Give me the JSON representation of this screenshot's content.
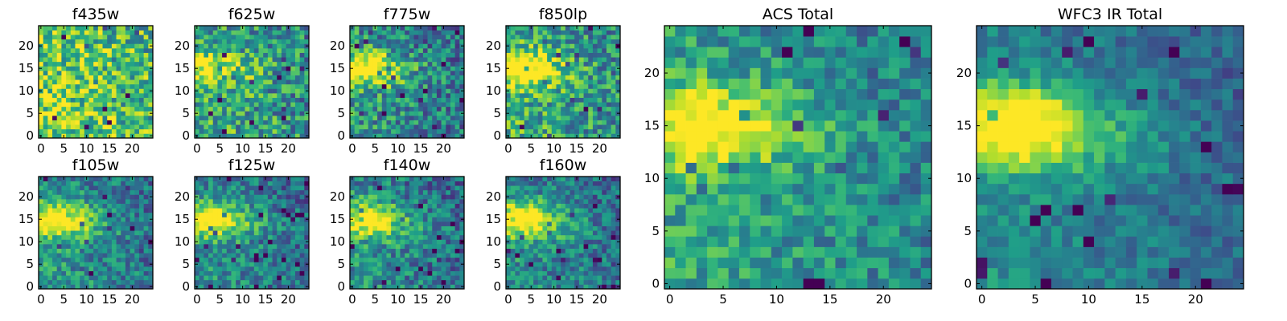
{
  "chart_data": {
    "type": "heatmap",
    "colormap": "viridis",
    "grid_size": 25,
    "panels": [
      {
        "id": "f435w",
        "title": "f435w",
        "seed": 11,
        "blob": 0.0,
        "noise": 0.32,
        "bias": 0.72,
        "xticks": [
          0,
          5,
          10,
          15,
          20
        ],
        "yticks": [
          0,
          5,
          10,
          15,
          20
        ]
      },
      {
        "id": "f625w",
        "title": "f625w",
        "seed": 23,
        "blob": 0.35,
        "noise": 0.3,
        "bias": 0.55,
        "xticks": [
          0,
          5,
          10,
          15,
          20
        ],
        "yticks": [
          0,
          5,
          10,
          15,
          20
        ]
      },
      {
        "id": "f775w",
        "title": "f775w",
        "seed": 37,
        "blob": 0.55,
        "noise": 0.28,
        "bias": 0.45,
        "xticks": [
          0,
          5,
          10,
          15,
          20
        ],
        "yticks": [
          0,
          5,
          10,
          15,
          20
        ]
      },
      {
        "id": "f850lp",
        "title": "f850lp",
        "seed": 41,
        "blob": 0.55,
        "noise": 0.28,
        "bias": 0.55,
        "xticks": [
          0,
          5,
          10,
          15,
          20
        ],
        "yticks": [
          0,
          5,
          10,
          15,
          20
        ]
      },
      {
        "id": "f105w",
        "title": "f105w",
        "seed": 53,
        "blob": 0.6,
        "noise": 0.22,
        "bias": 0.45,
        "xticks": [
          0,
          5,
          10,
          15,
          20
        ],
        "yticks": [
          0,
          5,
          10,
          15,
          20
        ]
      },
      {
        "id": "f125w",
        "title": "f125w",
        "seed": 67,
        "blob": 0.6,
        "noise": 0.22,
        "bias": 0.42,
        "xticks": [
          0,
          5,
          10,
          15,
          20
        ],
        "yticks": [
          0,
          5,
          10,
          15,
          20
        ]
      },
      {
        "id": "f140w",
        "title": "f140w",
        "seed": 71,
        "blob": 0.6,
        "noise": 0.24,
        "bias": 0.42,
        "xticks": [
          0,
          5,
          10,
          15,
          20
        ],
        "yticks": [
          0,
          5,
          10,
          15,
          20
        ]
      },
      {
        "id": "f160w",
        "title": "f160w",
        "seed": 83,
        "blob": 0.65,
        "noise": 0.22,
        "bias": 0.42,
        "xticks": [
          0,
          5,
          10,
          15,
          20
        ],
        "yticks": [
          0,
          5,
          10,
          15,
          20
        ]
      },
      {
        "id": "acs_total",
        "title": "ACS Total",
        "seed": 97,
        "blob": 0.55,
        "noise": 0.2,
        "bias": 0.5,
        "xticks": [
          0,
          5,
          10,
          15,
          20
        ],
        "yticks": [
          0,
          5,
          10,
          15,
          20
        ]
      },
      {
        "id": "wfc3_total",
        "title": "WFC3 IR Total",
        "seed": 101,
        "blob": 0.7,
        "noise": 0.14,
        "bias": 0.4,
        "xticks": [
          0,
          5,
          10,
          15,
          20
        ],
        "yticks": [
          0,
          5,
          10,
          15,
          20
        ]
      }
    ]
  }
}
